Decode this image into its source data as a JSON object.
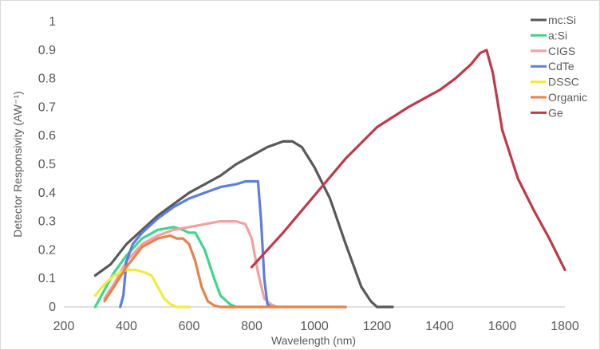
{
  "chart_data": {
    "type": "line",
    "title": "",
    "xlabel": "Wavelength (nm)",
    "ylabel": "Detector Responsivity (AW⁻¹)",
    "xlim": [
      200,
      1800
    ],
    "ylim": [
      0,
      1
    ],
    "x_ticks": [
      "200",
      "400",
      "600",
      "800",
      "1000",
      "1200",
      "1400",
      "1600",
      "1800"
    ],
    "y_ticks": [
      "0",
      "0.1",
      "0.2",
      "0.3",
      "0.4",
      "0.5",
      "0.6",
      "0.7",
      "0.8",
      "0.9",
      "1"
    ],
    "grid": false,
    "legend_position": "top-right",
    "series": [
      {
        "name": "mc:Si",
        "color": "#595959",
        "x": [
          300,
          350,
          400,
          450,
          500,
          550,
          600,
          650,
          700,
          750,
          800,
          850,
          900,
          930,
          960,
          1000,
          1050,
          1100,
          1150,
          1180,
          1200,
          1250
        ],
        "y": [
          0.11,
          0.15,
          0.22,
          0.27,
          0.32,
          0.36,
          0.4,
          0.43,
          0.46,
          0.5,
          0.53,
          0.56,
          0.58,
          0.58,
          0.56,
          0.49,
          0.38,
          0.22,
          0.07,
          0.02,
          0.0,
          0.0
        ]
      },
      {
        "name": "a:Si",
        "color": "#3dd68c",
        "x": [
          300,
          330,
          360,
          400,
          450,
          500,
          550,
          580,
          600,
          620,
          650,
          680,
          700,
          730,
          750
        ],
        "y": [
          0.0,
          0.06,
          0.12,
          0.18,
          0.24,
          0.27,
          0.28,
          0.27,
          0.26,
          0.26,
          0.2,
          0.1,
          0.04,
          0.01,
          0.0
        ]
      },
      {
        "name": "CIGS",
        "color": "#f2a0a0",
        "x": [
          330,
          360,
          400,
          450,
          500,
          550,
          600,
          650,
          700,
          750,
          780,
          800,
          820,
          840,
          860,
          880,
          900
        ],
        "y": [
          0.03,
          0.08,
          0.16,
          0.22,
          0.25,
          0.27,
          0.28,
          0.29,
          0.3,
          0.3,
          0.29,
          0.24,
          0.12,
          0.03,
          0.01,
          0.0,
          0.0
        ]
      },
      {
        "name": "CdTe",
        "color": "#5b7fe0",
        "x": [
          380,
          390,
          400,
          420,
          450,
          500,
          550,
          600,
          650,
          700,
          750,
          780,
          800,
          820,
          830,
          840,
          850,
          860
        ],
        "y": [
          0.0,
          0.04,
          0.16,
          0.22,
          0.26,
          0.31,
          0.35,
          0.38,
          0.4,
          0.42,
          0.43,
          0.44,
          0.44,
          0.44,
          0.3,
          0.1,
          0.01,
          0.0
        ]
      },
      {
        "name": "DSSC",
        "color": "#f0ec3c",
        "x": [
          300,
          330,
          360,
          400,
          430,
          460,
          480,
          500,
          520,
          540,
          560,
          580,
          600
        ],
        "y": [
          0.04,
          0.08,
          0.11,
          0.13,
          0.13,
          0.12,
          0.11,
          0.07,
          0.03,
          0.01,
          0.0,
          0.0,
          0.0
        ]
      },
      {
        "name": "Organic",
        "color": "#e8824a",
        "x": [
          330,
          360,
          400,
          450,
          500,
          540,
          560,
          580,
          600,
          620,
          640,
          660,
          680,
          700,
          800,
          900,
          1000,
          1100
        ],
        "y": [
          0.02,
          0.07,
          0.14,
          0.21,
          0.24,
          0.25,
          0.24,
          0.24,
          0.22,
          0.16,
          0.07,
          0.02,
          0.005,
          0.0,
          0.0,
          0.0,
          0.0,
          0.0
        ]
      },
      {
        "name": "Ge",
        "color": "#c0394b",
        "x": [
          800,
          900,
          1000,
          1100,
          1200,
          1300,
          1400,
          1450,
          1500,
          1530,
          1550,
          1570,
          1600,
          1650,
          1700,
          1750,
          1800
        ],
        "y": [
          0.14,
          0.26,
          0.39,
          0.52,
          0.63,
          0.7,
          0.76,
          0.8,
          0.85,
          0.89,
          0.9,
          0.82,
          0.62,
          0.45,
          0.34,
          0.24,
          0.13
        ]
      }
    ]
  }
}
